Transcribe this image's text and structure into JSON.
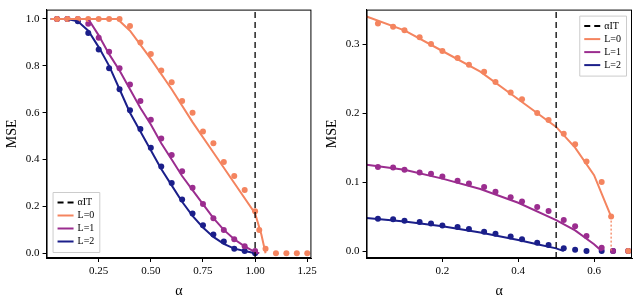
{
  "chart_data": [
    {
      "type": "line",
      "x_label": "α",
      "y_label": "MSE",
      "xlim": [
        0,
        1.27
      ],
      "ylim": [
        -0.02,
        1.04
      ],
      "xticks": [
        {
          "value": 0.25,
          "label": "0.25"
        },
        {
          "value": 0.5,
          "label": "0.50"
        },
        {
          "value": 0.75,
          "label": "0.75"
        },
        {
          "value": 1,
          "label": "1.00"
        },
        {
          "value": 1.25,
          "label": "1.25"
        }
      ],
      "yticks": [
        {
          "value": 0,
          "label": "0.0"
        },
        0.2,
        0.4,
        0.6,
        0.8,
        {
          "value": 1,
          "label": "1.0"
        }
      ],
      "grid": false,
      "legend": "lower left",
      "series": [
        {
          "name": "αIT",
          "type": "line",
          "color": "#000000",
          "line_style": "dashed",
          "x": [
            1,
            1
          ],
          "values": [
            -0.02,
            1.04
          ]
        },
        {
          "name": "L=0",
          "type": "line",
          "color": "#f4845f",
          "line_style": "solid",
          "x": [
            0.02,
            0.1,
            0.2,
            0.3,
            0.34,
            0.4,
            0.5,
            0.6,
            0.7,
            0.8,
            0.9,
            1.0,
            1.03,
            1.05
          ],
          "values": [
            1,
            1,
            1,
            1,
            1,
            0.95,
            0.83,
            0.7,
            0.56,
            0.43,
            0.3,
            0.17,
            0.08,
            0
          ]
        },
        {
          "name": "L=1",
          "type": "line",
          "color": "#9b2d8f",
          "line_style": "solid",
          "x": [
            0.02,
            0.1,
            0.2,
            0.25,
            0.3,
            0.35,
            0.4,
            0.45,
            0.5,
            0.55,
            0.6,
            0.65,
            0.7,
            0.75,
            0.8,
            0.85,
            0.9,
            0.95,
            1.0,
            1.02
          ],
          "values": [
            1,
            1,
            1,
            0.93,
            0.85,
            0.78,
            0.7,
            0.62,
            0.55,
            0.47,
            0.4,
            0.33,
            0.27,
            0.21,
            0.15,
            0.1,
            0.06,
            0.03,
            0.005,
            0
          ]
        },
        {
          "name": "L=2",
          "type": "line",
          "color": "#1b1f8a",
          "line_style": "solid",
          "x": [
            0.02,
            0.1,
            0.15,
            0.2,
            0.25,
            0.3,
            0.35,
            0.4,
            0.45,
            0.5,
            0.55,
            0.6,
            0.65,
            0.7,
            0.75,
            0.8,
            0.85,
            0.9,
            0.95,
            1.0
          ],
          "values": [
            1,
            1,
            0.99,
            0.95,
            0.88,
            0.8,
            0.7,
            0.6,
            0.52,
            0.44,
            0.36,
            0.29,
            0.22,
            0.16,
            0.11,
            0.07,
            0.04,
            0.02,
            0.01,
            0
          ]
        },
        {
          "type": "scatter",
          "color": "#f4845f",
          "marker": "circle",
          "x": [
            0.05,
            0.1,
            0.15,
            0.2,
            0.25,
            0.3,
            0.35,
            0.4,
            0.45,
            0.5,
            0.55,
            0.6,
            0.65,
            0.7,
            0.75,
            0.8,
            0.85,
            0.9,
            0.95,
            1.0,
            1.02,
            1.05,
            1.1,
            1.15,
            1.2,
            1.25
          ],
          "values": [
            1,
            1,
            1,
            1,
            1,
            1,
            1,
            0.97,
            0.9,
            0.85,
            0.78,
            0.73,
            0.65,
            0.6,
            0.52,
            0.47,
            0.39,
            0.33,
            0.27,
            0.18,
            0.1,
            0.02,
            0,
            0,
            0,
            0
          ]
        },
        {
          "type": "scatter",
          "color": "#9b2d8f",
          "marker": "circle",
          "x": [
            0.05,
            0.1,
            0.15,
            0.2,
            0.25,
            0.3,
            0.35,
            0.4,
            0.45,
            0.5,
            0.55,
            0.6,
            0.65,
            0.7,
            0.75,
            0.8,
            0.85,
            0.9,
            0.95,
            1.0
          ],
          "values": [
            1,
            1,
            1,
            0.98,
            0.92,
            0.86,
            0.79,
            0.72,
            0.65,
            0.57,
            0.49,
            0.42,
            0.35,
            0.28,
            0.21,
            0.15,
            0.1,
            0.06,
            0.03,
            0.01
          ]
        },
        {
          "type": "scatter",
          "color": "#1b1f8a",
          "marker": "circle",
          "x": [
            0.05,
            0.1,
            0.15,
            0.2,
            0.25,
            0.3,
            0.35,
            0.4,
            0.45,
            0.5,
            0.55,
            0.6,
            0.65,
            0.7,
            0.75,
            0.8,
            0.85,
            0.9,
            0.95,
            1.0
          ],
          "values": [
            1,
            1,
            0.99,
            0.94,
            0.87,
            0.79,
            0.7,
            0.61,
            0.53,
            0.45,
            0.37,
            0.3,
            0.23,
            0.17,
            0.12,
            0.08,
            0.05,
            0.02,
            0.01,
            0
          ]
        }
      ]
    },
    {
      "type": "line",
      "x_label": "α",
      "y_label": "MSE",
      "xlim": [
        0,
        0.7
      ],
      "ylim": [
        -0.01,
        0.35
      ],
      "xticks": [
        0.2,
        0.4,
        0.6
      ],
      "yticks": [
        {
          "value": 0,
          "label": "0.0"
        },
        0.1,
        0.2,
        0.3
      ],
      "grid": false,
      "legend": "upper right",
      "series": [
        {
          "name": "αIT",
          "type": "line",
          "color": "#000000",
          "line_style": "dashed",
          "x": [
            0.5,
            0.5
          ],
          "values": [
            -0.01,
            0.35
          ]
        },
        {
          "name": "L=0",
          "type": "line",
          "color": "#f4845f",
          "line_style": "solid",
          "x": [
            0,
            0.1,
            0.2,
            0.3,
            0.4,
            0.5,
            0.55,
            0.6,
            0.63,
            0.645
          ],
          "values": [
            0.34,
            0.32,
            0.29,
            0.26,
            0.22,
            0.18,
            0.15,
            0.11,
            0.07,
            0.05
          ]
        },
        {
          "name": "L=1",
          "type": "line",
          "color": "#9b2d8f",
          "line_style": "solid",
          "x": [
            0,
            0.1,
            0.2,
            0.3,
            0.4,
            0.5,
            0.55,
            0.6,
            0.62
          ],
          "values": [
            0.125,
            0.118,
            0.105,
            0.09,
            0.07,
            0.045,
            0.03,
            0.01,
            0
          ]
        },
        {
          "name": "L=2",
          "type": "line",
          "color": "#1b1f8a",
          "line_style": "solid",
          "x": [
            0,
            0.1,
            0.2,
            0.3,
            0.4,
            0.45,
            0.5,
            0.52
          ],
          "values": [
            0.048,
            0.043,
            0.036,
            0.027,
            0.016,
            0.01,
            0.004,
            0
          ]
        },
        {
          "type": "line",
          "color": "#f4845f",
          "line_style": "dotted",
          "x": [
            0.645,
            0.645
          ],
          "values": [
            0.05,
            0
          ]
        },
        {
          "type": "scatter",
          "color": "#f4845f",
          "marker": "circle",
          "x": [
            0.03,
            0.07,
            0.1,
            0.14,
            0.17,
            0.2,
            0.24,
            0.27,
            0.31,
            0.34,
            0.38,
            0.41,
            0.45,
            0.48,
            0.52,
            0.55,
            0.58,
            0.62,
            0.645,
            0.69
          ],
          "values": [
            0.33,
            0.325,
            0.32,
            0.31,
            0.3,
            0.29,
            0.28,
            0.27,
            0.26,
            0.245,
            0.23,
            0.22,
            0.2,
            0.19,
            0.17,
            0.155,
            0.13,
            0.1,
            0.05,
            0
          ]
        },
        {
          "type": "scatter",
          "color": "#9b2d8f",
          "marker": "circle",
          "x": [
            0.03,
            0.07,
            0.1,
            0.14,
            0.17,
            0.2,
            0.24,
            0.27,
            0.31,
            0.34,
            0.38,
            0.41,
            0.45,
            0.48,
            0.52,
            0.55,
            0.58,
            0.62,
            0.65,
            0.69
          ],
          "values": [
            0.122,
            0.121,
            0.118,
            0.114,
            0.112,
            0.108,
            0.102,
            0.098,
            0.093,
            0.086,
            0.078,
            0.072,
            0.064,
            0.058,
            0.045,
            0.036,
            0.022,
            0.005,
            0,
            0
          ]
        },
        {
          "type": "scatter",
          "color": "#1b1f8a",
          "marker": "circle",
          "x": [
            0.03,
            0.07,
            0.1,
            0.14,
            0.17,
            0.2,
            0.24,
            0.27,
            0.31,
            0.34,
            0.38,
            0.41,
            0.45,
            0.48,
            0.52,
            0.55,
            0.58,
            0.62,
            0.65,
            0.69
          ],
          "values": [
            0.047,
            0.046,
            0.044,
            0.042,
            0.04,
            0.037,
            0.035,
            0.032,
            0.028,
            0.025,
            0.021,
            0.017,
            0.012,
            0.009,
            0.004,
            0.002,
            0,
            0,
            0,
            0
          ]
        }
      ]
    }
  ]
}
